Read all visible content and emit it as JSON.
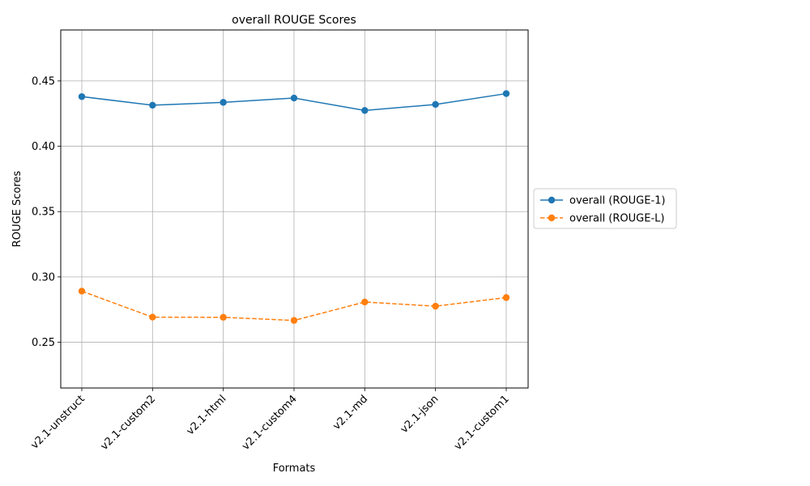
{
  "chart_data": {
    "type": "line",
    "title": "overall ROUGE Scores",
    "xlabel": "Formats",
    "ylabel": "ROUGE Scores",
    "categories": [
      "v2.1-unstruct",
      "v2.1-custom2",
      "v2.1-html",
      "v2.1-custom4",
      "v2.1-md",
      "v2.1-json",
      "v2.1-custom1"
    ],
    "ylim": [
      0.215,
      0.489
    ],
    "yticks": [
      0.25,
      0.3,
      0.35,
      0.4,
      0.45
    ],
    "ytick_labels": [
      "0.25",
      "0.30",
      "0.35",
      "0.40",
      "0.45"
    ],
    "grid": true,
    "legend_position": "right",
    "series": [
      {
        "name": "overall (ROUGE-1)",
        "values": [
          0.438,
          0.4314,
          0.4336,
          0.4369,
          0.4274,
          0.432,
          0.4403
        ],
        "color": "#1f77b4",
        "line_style": "solid",
        "marker": "circle"
      },
      {
        "name": "overall (ROUGE-L)",
        "values": [
          0.2891,
          0.2692,
          0.2691,
          0.2667,
          0.2808,
          0.2776,
          0.2842
        ],
        "color": "#ff7f0e",
        "line_style": "dashed",
        "marker": "circle"
      }
    ]
  }
}
